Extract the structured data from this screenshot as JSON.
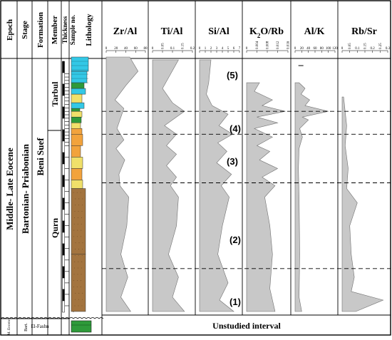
{
  "columns": {
    "epoch": "Epoch",
    "stage": "Stage",
    "formation": "Formation",
    "member": "Member",
    "thickness": "Thickness",
    "sample": "Sample no.",
    "lithology": "Lithology"
  },
  "units": {
    "epoch_main": "Middle- Late Eocene",
    "epoch_bottom": "M. Eocene",
    "stage_main": "Bartonian- Priabonian",
    "stage_bottom": "Bart.",
    "formation_main": "Beni Suef",
    "formation_bottom": "El-Fashn",
    "member_upper": "Tarbul",
    "member_lower": "Qurn"
  },
  "zones": [
    "(5)",
    "(4)",
    "(3)",
    "(2)",
    "(1)"
  ],
  "unstudied_label": "Unstudied interval",
  "colors": {
    "fill": "#c8c8c8",
    "stroke": "#707070",
    "limestone": "#33c8e6",
    "shale_green": "#2e9a3a",
    "sand_yellow": "#f0e06a",
    "sand_orange": "#f2a33c",
    "clay_brown": "#a3743f"
  },
  "thickness_ticks": [
    "0",
    "5",
    "10",
    "15",
    "20",
    "25",
    "30",
    "35",
    "40",
    "45",
    "50",
    "55",
    "60",
    "65",
    "70",
    "75",
    "80",
    "85"
  ],
  "chart_data": {
    "type": "area",
    "depth_axis": "vertical",
    "depth_range": [
      0,
      85
    ],
    "panels": [
      {
        "title": "Zr/Al",
        "title_parts": [
          "Zr/Al"
        ],
        "xlim": [
          0,
          80
        ],
        "ticks": [
          "0",
          "20",
          "40",
          "60",
          "80"
        ],
        "points": [
          [
            0,
            0
          ],
          [
            50,
            0
          ],
          [
            30,
            5
          ],
          [
            44,
            12
          ],
          [
            30,
            20
          ],
          [
            42,
            30
          ],
          [
            46,
            40
          ],
          [
            28,
            44
          ],
          [
            26,
            48
          ],
          [
            38,
            53
          ],
          [
            20,
            57
          ],
          [
            36,
            60
          ],
          [
            22,
            64
          ],
          [
            28,
            67
          ],
          [
            36,
            71
          ],
          [
            18,
            74
          ],
          [
            40,
            79
          ],
          [
            65,
            84
          ],
          [
            48,
            89
          ],
          [
            0,
            89
          ]
        ]
      },
      {
        "title": "Ti/Al",
        "title_parts": [
          "Ti/Al"
        ],
        "xlim": [
          0,
          0.2
        ],
        "ticks": [
          "0",
          "0.05",
          "0.1",
          "0.15",
          "0.2"
        ],
        "points": [
          [
            0,
            0
          ],
          [
            0.16,
            0
          ],
          [
            0.1,
            5
          ],
          [
            0.13,
            12
          ],
          [
            0.08,
            20
          ],
          [
            0.12,
            30
          ],
          [
            0.13,
            40
          ],
          [
            0.09,
            44
          ],
          [
            0.12,
            47
          ],
          [
            0.07,
            51
          ],
          [
            0.12,
            55
          ],
          [
            0.07,
            58
          ],
          [
            0.12,
            62
          ],
          [
            0.06,
            65
          ],
          [
            0.16,
            70
          ],
          [
            0.1,
            73
          ],
          [
            0.05,
            78
          ],
          [
            0.09,
            83
          ],
          [
            0.13,
            88
          ],
          [
            0,
            88
          ]
        ]
      },
      {
        "title": "Si/Al",
        "title_parts": [
          "Si/Al"
        ],
        "xlim": [
          0,
          7
        ],
        "ticks": [
          "0",
          "1",
          "2",
          "3",
          "4",
          "5",
          "6",
          "7"
        ],
        "points": [
          [
            0,
            0
          ],
          [
            6.0,
            0
          ],
          [
            3.5,
            4
          ],
          [
            5.0,
            10
          ],
          [
            3.2,
            20
          ],
          [
            4.0,
            30
          ],
          [
            5.2,
            40
          ],
          [
            3.8,
            44
          ],
          [
            5.6,
            48
          ],
          [
            3.0,
            52
          ],
          [
            4.8,
            56
          ],
          [
            3.2,
            59
          ],
          [
            5.8,
            62
          ],
          [
            3.4,
            65
          ],
          [
            5.0,
            69
          ],
          [
            2.2,
            72
          ],
          [
            1.2,
            76
          ],
          [
            1.6,
            80
          ],
          [
            2.0,
            88
          ],
          [
            0,
            88
          ]
        ]
      },
      {
        "title": "K2O/Rb",
        "title_parts": [
          "K",
          "2",
          "O/Rb"
        ],
        "xlim": [
          0,
          0.016
        ],
        "ticks": [
          "0",
          "0.004",
          "0.008",
          "0.012",
          "0.016"
        ],
        "points": [
          [
            0,
            0
          ],
          [
            0.011,
            0
          ],
          [
            0.009,
            8
          ],
          [
            0.01,
            20
          ],
          [
            0.009,
            30
          ],
          [
            0.007,
            40
          ],
          [
            0.011,
            44
          ],
          [
            0.006,
            47
          ],
          [
            0.012,
            50
          ],
          [
            0.005,
            53
          ],
          [
            0.009,
            56
          ],
          [
            0.004,
            58
          ],
          [
            0.01,
            61
          ],
          [
            0.003,
            64
          ],
          [
            0.012,
            66
          ],
          [
            0.004,
            68
          ],
          [
            0.015,
            70
          ],
          [
            0.006,
            72
          ],
          [
            0.01,
            74
          ],
          [
            0.003,
            77
          ],
          [
            0.005,
            80
          ],
          [
            0,
            80
          ]
        ]
      },
      {
        "title": "Al/K",
        "title_parts": [
          "Al/K"
        ],
        "xlim": [
          0,
          120
        ],
        "ticks": [
          "0",
          "20",
          "40",
          "60",
          "80",
          "100",
          "120"
        ],
        "points": [
          [
            0,
            0
          ],
          [
            20,
            0
          ],
          [
            12,
            5
          ],
          [
            14,
            20
          ],
          [
            12,
            40
          ],
          [
            10,
            50
          ],
          [
            12,
            57
          ],
          [
            22,
            61
          ],
          [
            14,
            64
          ],
          [
            40,
            67
          ],
          [
            22,
            68
          ],
          [
            100,
            70
          ],
          [
            30,
            72
          ],
          [
            44,
            74
          ],
          [
            18,
            76
          ],
          [
            30,
            78
          ],
          [
            12,
            80
          ],
          [
            0,
            80
          ]
        ],
        "extra": [
          [
            10,
            86
          ],
          [
            25,
            86
          ]
        ]
      },
      {
        "title": "Rb/Sr",
        "title_parts": [
          "Rb/Sr"
        ],
        "xlim": [
          0,
          0.3
        ],
        "ticks": [
          "0",
          "0.05",
          "0.1",
          "0.15",
          "0.2",
          "0.25",
          "0.3"
        ],
        "points": [
          [
            0,
            0
          ],
          [
            0.09,
            0
          ],
          [
            0.27,
            4
          ],
          [
            0.06,
            7
          ],
          [
            0.08,
            12
          ],
          [
            0.06,
            20
          ],
          [
            0.05,
            30
          ],
          [
            0.1,
            38
          ],
          [
            0.03,
            43
          ],
          [
            0.04,
            50
          ],
          [
            0.02,
            58
          ],
          [
            0.03,
            65
          ],
          [
            0.01,
            75
          ],
          [
            0,
            75
          ]
        ]
      }
    ],
    "boundaries": [
      15,
      45,
      62,
      70
    ]
  }
}
